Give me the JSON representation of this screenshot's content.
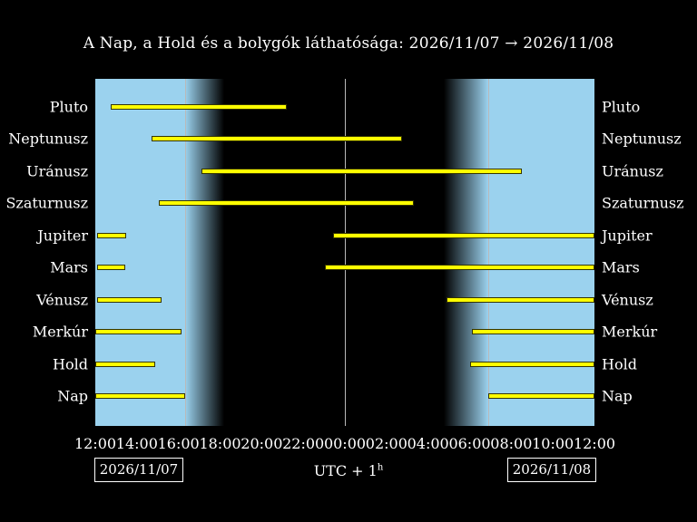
{
  "title": "A Nap, a Hold és a bolygók láthatósága: 2026/11/07 → 2026/11/08",
  "footer": {
    "left_date": "2026/11/07",
    "right_date": "2026/11/08",
    "timezone_label": "UTC + 1",
    "timezone_superscript": "h"
  },
  "chart_data": {
    "type": "bar",
    "subtype": "visibility-gantt",
    "description": "Horizontal yellow bars show visibility intervals of Sun, Moon and planets; hours measured from 12:00 on 2026/11/07 to 12:00 on 2026/11/08; light blue bands are daylight, black is night",
    "x_axis": {
      "start_hour": 0,
      "end_hour": 24,
      "tick_labels": [
        "12:00",
        "14:00",
        "16:00",
        "18:00",
        "20:00",
        "22:00",
        "00:00",
        "02:00",
        "04:00",
        "06:00",
        "08:00",
        "10:00",
        "12:00"
      ]
    },
    "daylight": {
      "day_color": "#9bd2ee",
      "night_color": "#000000",
      "sunset_hour": 4.3,
      "dusk_end_hour": 6.2,
      "dawn_start_hour": 16.75,
      "sunrise_hour": 18.9
    },
    "gridlines_hours": [
      4.3,
      12,
      18.9
    ],
    "bar_color": "#ffff00",
    "series": [
      {
        "name": "Pluto",
        "intervals": [
          [
            0.75,
            9.2
          ]
        ]
      },
      {
        "name": "Neptunusz",
        "intervals": [
          [
            2.7,
            14.75
          ]
        ]
      },
      {
        "name": "Uránusz",
        "intervals": [
          [
            5.1,
            20.5
          ]
        ]
      },
      {
        "name": "Szaturnusz",
        "intervals": [
          [
            3.05,
            15.3
          ]
        ]
      },
      {
        "name": "Jupiter",
        "intervals": [
          [
            0.1,
            1.5
          ],
          [
            11.45,
            24
          ]
        ]
      },
      {
        "name": "Mars",
        "intervals": [
          [
            0.1,
            1.45
          ],
          [
            11.05,
            24
          ]
        ]
      },
      {
        "name": "Vénusz",
        "intervals": [
          [
            0.1,
            3.2
          ],
          [
            16.9,
            24
          ]
        ]
      },
      {
        "name": "Merkúr",
        "intervals": [
          [
            0,
            4.15
          ],
          [
            18.1,
            24
          ]
        ]
      },
      {
        "name": "Hold",
        "intervals": [
          [
            0,
            2.9
          ],
          [
            18.0,
            24
          ]
        ]
      },
      {
        "name": "Nap",
        "intervals": [
          [
            0,
            4.3
          ],
          [
            18.9,
            24
          ]
        ]
      }
    ]
  }
}
